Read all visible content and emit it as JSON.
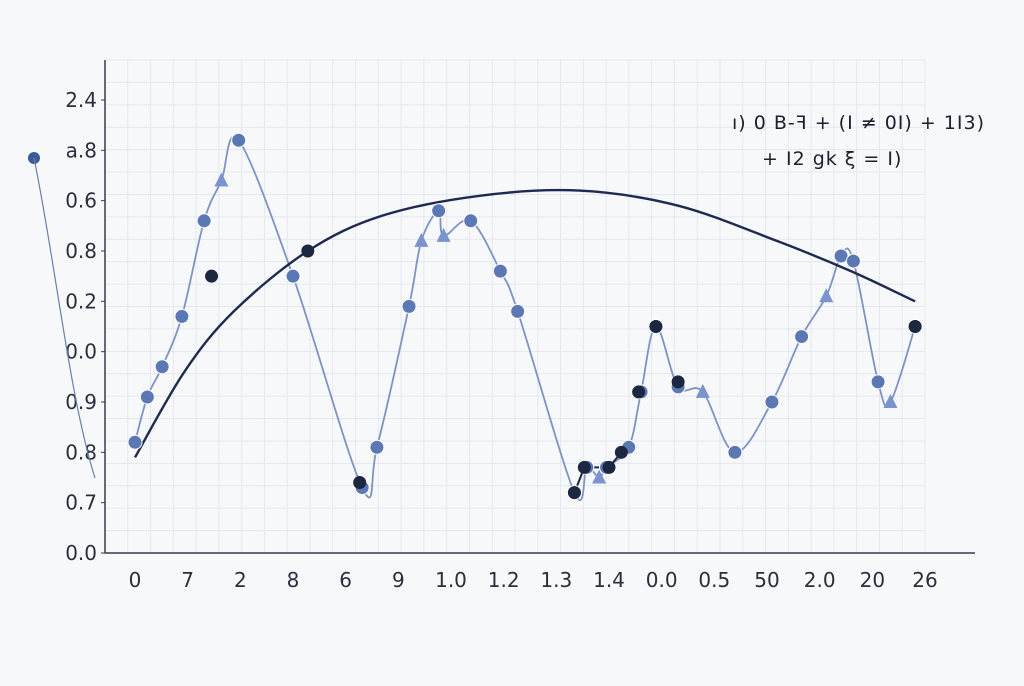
{
  "chart_data": {
    "type": "line",
    "title": "",
    "xlabel": "",
    "ylabel": "",
    "x_tick_labels": [
      "0",
      "7",
      "2",
      "8",
      "6",
      "9",
      "1.0",
      "1.2",
      "1.3",
      "1.4",
      "0.0",
      "0.5",
      "50",
      "2.0",
      "20",
      "26"
    ],
    "y_tick_labels": [
      "0.0",
      "0.7",
      "0.8",
      "0.9",
      "0.0",
      "0.2",
      "0.8",
      "0.6",
      "a.8",
      "2.4"
    ],
    "ylim": [
      0,
      9
    ],
    "grid": true,
    "series": [
      {
        "kind": "wavy-markers",
        "color": "#5b78b5",
        "points": [
          {
            "x": 0.0,
            "y": 2.2,
            "marker": "circle"
          },
          {
            "x": 0.25,
            "y": 3.1,
            "marker": "circle"
          },
          {
            "x": 0.55,
            "y": 3.7,
            "marker": "circle"
          },
          {
            "x": 0.95,
            "y": 4.7,
            "marker": "circle"
          },
          {
            "x": 1.4,
            "y": 6.6,
            "marker": "circle"
          },
          {
            "x": 1.75,
            "y": 7.4,
            "marker": "triangle"
          },
          {
            "x": 2.1,
            "y": 8.2,
            "marker": "circle"
          },
          {
            "x": 3.2,
            "y": 5.5,
            "marker": "circle"
          },
          {
            "x": 4.6,
            "y": 1.3,
            "marker": "circle"
          },
          {
            "x": 4.9,
            "y": 2.1,
            "marker": "circle"
          },
          {
            "x": 5.55,
            "y": 4.9,
            "marker": "circle"
          },
          {
            "x": 5.8,
            "y": 6.2,
            "marker": "triangle"
          },
          {
            "x": 6.15,
            "y": 6.8,
            "marker": "circle"
          },
          {
            "x": 6.25,
            "y": 6.3,
            "marker": "triangle"
          },
          {
            "x": 6.8,
            "y": 6.6,
            "marker": "circle"
          },
          {
            "x": 7.4,
            "y": 5.6,
            "marker": "circle"
          },
          {
            "x": 7.75,
            "y": 4.8,
            "marker": "circle"
          },
          {
            "x": 8.9,
            "y": 1.2,
            "marker": "circle"
          },
          {
            "x": 9.15,
            "y": 1.7,
            "marker": "circle"
          },
          {
            "x": 9.4,
            "y": 1.5,
            "marker": "triangle"
          },
          {
            "x": 9.55,
            "y": 1.7,
            "marker": "circle"
          },
          {
            "x": 10.0,
            "y": 2.1,
            "marker": "circle"
          },
          {
            "x": 10.25,
            "y": 3.2,
            "marker": "circle"
          },
          {
            "x": 10.55,
            "y": 4.5,
            "marker": "circle"
          },
          {
            "x": 11.0,
            "y": 3.3,
            "marker": "circle"
          },
          {
            "x": 11.5,
            "y": 3.2,
            "marker": "triangle"
          },
          {
            "x": 12.15,
            "y": 2.0,
            "marker": "circle"
          },
          {
            "x": 12.9,
            "y": 3.0,
            "marker": "circle"
          },
          {
            "x": 13.5,
            "y": 4.3,
            "marker": "circle"
          },
          {
            "x": 14.0,
            "y": 5.1,
            "marker": "triangle"
          },
          {
            "x": 14.3,
            "y": 5.9,
            "marker": "circle"
          },
          {
            "x": 14.55,
            "y": 5.8,
            "marker": "circle"
          },
          {
            "x": 15.05,
            "y": 3.4,
            "marker": "circle"
          },
          {
            "x": 15.3,
            "y": 3.0,
            "marker": "triangle"
          },
          {
            "x": 15.8,
            "y": 4.5,
            "marker": "circle"
          }
        ]
      },
      {
        "kind": "dark-markers",
        "color": "#1c2740",
        "points": [
          {
            "x": 1.55,
            "y": 5.5
          },
          {
            "x": 3.5,
            "y": 6.0
          },
          {
            "x": 4.55,
            "y": 1.4
          },
          {
            "x": 8.9,
            "y": 1.2
          },
          {
            "x": 9.1,
            "y": 1.7
          },
          {
            "x": 9.6,
            "y": 1.7
          },
          {
            "x": 9.85,
            "y": 2.0
          },
          {
            "x": 10.2,
            "y": 3.2
          },
          {
            "x": 10.55,
            "y": 4.5
          },
          {
            "x": 11.0,
            "y": 3.4
          },
          {
            "x": 15.8,
            "y": 4.5
          }
        ]
      },
      {
        "kind": "arc",
        "color": "#1e2a4f",
        "points": [
          {
            "x": 0.0,
            "y": 1.9
          },
          {
            "x": 1.0,
            "y": 3.6
          },
          {
            "x": 2.0,
            "y": 4.8
          },
          {
            "x": 3.5,
            "y": 6.0
          },
          {
            "x": 5.0,
            "y": 6.7
          },
          {
            "x": 7.0,
            "y": 7.1
          },
          {
            "x": 9.0,
            "y": 7.2
          },
          {
            "x": 11.0,
            "y": 6.9
          },
          {
            "x": 13.0,
            "y": 6.2
          },
          {
            "x": 14.5,
            "y": 5.6
          },
          {
            "x": 15.8,
            "y": 5.0
          }
        ]
      }
    ],
    "annotations": [
      "ı) 0 B-ꟻ + (I ≠ 0I) + 1I3)",
      "+ I2 gk ξ = I)"
    ]
  }
}
